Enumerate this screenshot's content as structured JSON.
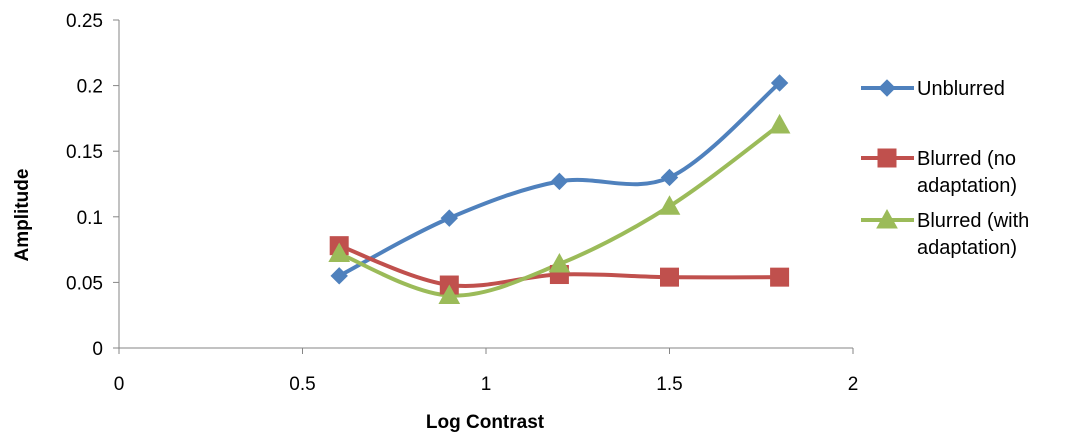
{
  "chart_data": {
    "type": "line",
    "title": "",
    "xlabel": "Log Contrast",
    "ylabel": "Amplitude",
    "xlim": [
      0,
      2
    ],
    "ylim": [
      0,
      0.25
    ],
    "x_ticks": [
      "0",
      "0.5",
      "1",
      "1.5",
      "2"
    ],
    "y_ticks": [
      "0",
      "0.05",
      "0.1",
      "0.15",
      "0.2",
      "0.25"
    ],
    "grid": false,
    "smooth": true,
    "legend_position": "right",
    "series": [
      {
        "name": "Unblurred",
        "legend_lines": [
          "Unblurred"
        ],
        "color": "#4F81BD",
        "marker": "diamond",
        "x": [
          0.6,
          0.9,
          1.2,
          1.5,
          1.8
        ],
        "y": [
          0.055,
          0.099,
          0.127,
          0.13,
          0.202
        ]
      },
      {
        "name": "Blurred (no adaptation)",
        "legend_lines": [
          "Blurred (no",
          "adaptation)"
        ],
        "color": "#C0504D",
        "marker": "square",
        "x": [
          0.6,
          0.9,
          1.2,
          1.5,
          1.8
        ],
        "y": [
          0.078,
          0.048,
          0.056,
          0.054,
          0.054
        ]
      },
      {
        "name": "Blurred (with adaptation)",
        "legend_lines": [
          "Blurred (with",
          "adaptation)"
        ],
        "color": "#9BBB59",
        "marker": "triangle",
        "x": [
          0.6,
          0.9,
          1.2,
          1.5,
          1.8
        ],
        "y": [
          0.072,
          0.04,
          0.064,
          0.108,
          0.17
        ]
      }
    ]
  }
}
